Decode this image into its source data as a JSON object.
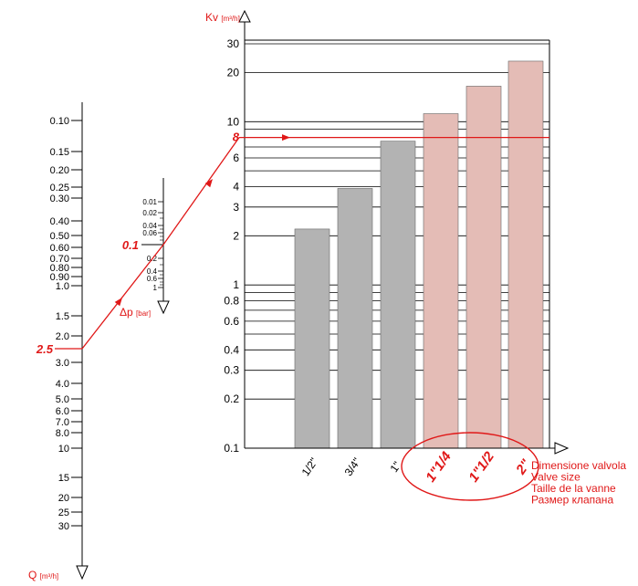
{
  "chart_data": {
    "type": "bar",
    "kv_axis": {
      "label": "Kv",
      "unit": "[m³/h]",
      "scale": "log",
      "range": [
        0.1,
        30
      ],
      "ticks": [
        {
          "value": 0.1,
          "label": "0.1"
        },
        {
          "value": 0.2,
          "label": "0.2"
        },
        {
          "value": 0.3,
          "label": "0.3"
        },
        {
          "value": 0.4,
          "label": "0.4"
        },
        {
          "value": 0.6,
          "label": "0.6"
        },
        {
          "value": 0.8,
          "label": "0.8"
        },
        {
          "value": 1,
          "label": "1"
        },
        {
          "value": 2,
          "label": "2"
        },
        {
          "value": 3,
          "label": "3"
        },
        {
          "value": 4,
          "label": "4"
        },
        {
          "value": 6,
          "label": "6"
        },
        {
          "value": 8,
          "label": "8"
        },
        {
          "value": 10,
          "label": "10"
        },
        {
          "value": 20,
          "label": "20"
        },
        {
          "value": 30,
          "label": "30"
        }
      ],
      "gridlines": [
        0.2,
        0.3,
        0.4,
        0.5,
        0.6,
        0.7,
        0.8,
        0.9,
        1,
        2,
        3,
        4,
        5,
        6,
        7,
        8,
        9,
        10,
        20,
        30
      ]
    },
    "categories": [
      "1/2\"",
      "3/4\"",
      "1\"",
      "1\"1/4",
      "1\"1/2",
      "2\""
    ],
    "values": [
      2.2,
      3.9,
      7.6,
      11.2,
      16.5,
      23.5
    ],
    "highlighted": [
      false,
      false,
      false,
      true,
      true,
      true
    ],
    "colors": {
      "normal": "#b3b3b3",
      "highlighted": "#e4bcb6",
      "accent": "#e01818",
      "axis": "#000000"
    },
    "x_axis_labels": [
      "Dimensione valvola",
      "Valve size",
      "Taille de la vanne",
      "Размер клапана"
    ],
    "q_axis": {
      "label": "Q",
      "unit": "[m³/h]",
      "scale": "log",
      "ticks": [
        "0.10",
        "0.15",
        "0.20",
        "0.25",
        "0.30",
        "0.40",
        "0.50",
        "0.60",
        "0.70",
        "0.80",
        "0.90",
        "1.0",
        "1.5",
        "2.0",
        "3.0",
        "4.0",
        "5.0",
        "6.0",
        "7.0",
        "8.0",
        "10",
        "15",
        "20",
        "25",
        "30"
      ]
    },
    "dp_axis": {
      "label": "Δp",
      "unit": "[bar]",
      "scale": "log",
      "ticks": [
        "0.01",
        "0.02",
        "0.04",
        "0.06",
        "0.2",
        "0.4",
        "0.6",
        "1"
      ]
    },
    "example": {
      "q": 2.5,
      "q_label": "2.5",
      "dp": 0.1,
      "dp_label": "0.1",
      "kv": 8,
      "kv_label": "8"
    }
  }
}
